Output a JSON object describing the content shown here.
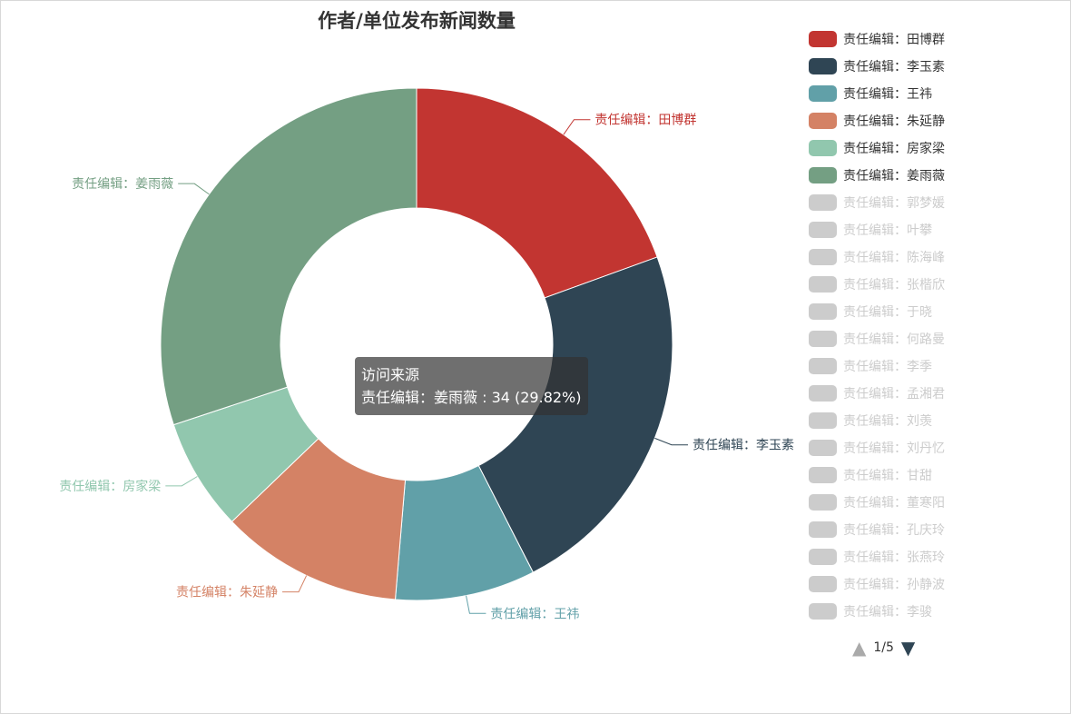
{
  "chart_data": {
    "type": "pie",
    "variant": "donut",
    "title": "作者/单位发布新闻数量",
    "series_name": "访问来源",
    "slices": [
      {
        "name": "责任编辑：田博群",
        "value": 22,
        "color": "#c23531"
      },
      {
        "name": "责任编辑：李玉素",
        "value": 26,
        "color": "#2f4554"
      },
      {
        "name": "责任编辑：王祎",
        "value": 10,
        "color": "#61a0a8"
      },
      {
        "name": "责任编辑：朱延静",
        "value": 13,
        "color": "#d48265"
      },
      {
        "name": "责任编辑：房家梁",
        "value": 8,
        "color": "#91c7ae"
      },
      {
        "name": "责任编辑：姜雨薇",
        "value": 34,
        "color": "#749f83"
      }
    ],
    "hidden_legend_entries": [
      "责任编辑：郭梦媛",
      "责任编辑：叶攀",
      "责任编辑：陈海峰",
      "责任编辑：张楷欣",
      "责任编辑：于晓",
      "责任编辑：何路曼",
      "责任编辑：李季",
      "责任编辑：孟湘君",
      "责任编辑：刘羡",
      "责任编辑：刘丹忆",
      "责任编辑：甘甜",
      "责任编辑：董寒阳",
      "责任编辑：孔庆玲",
      "责任编辑：张燕玲",
      "责任编辑：孙静波",
      "责任编辑：李骏"
    ],
    "legend_position": "right",
    "legend_page": "1/5",
    "tooltip": {
      "title": "访问来源",
      "text": "责任编辑：姜雨薇 : 34 (29.82%)"
    }
  },
  "colors": {
    "inactive": "#cccccc"
  },
  "icons": {
    "prev": "triangle-up",
    "next": "triangle-down"
  }
}
